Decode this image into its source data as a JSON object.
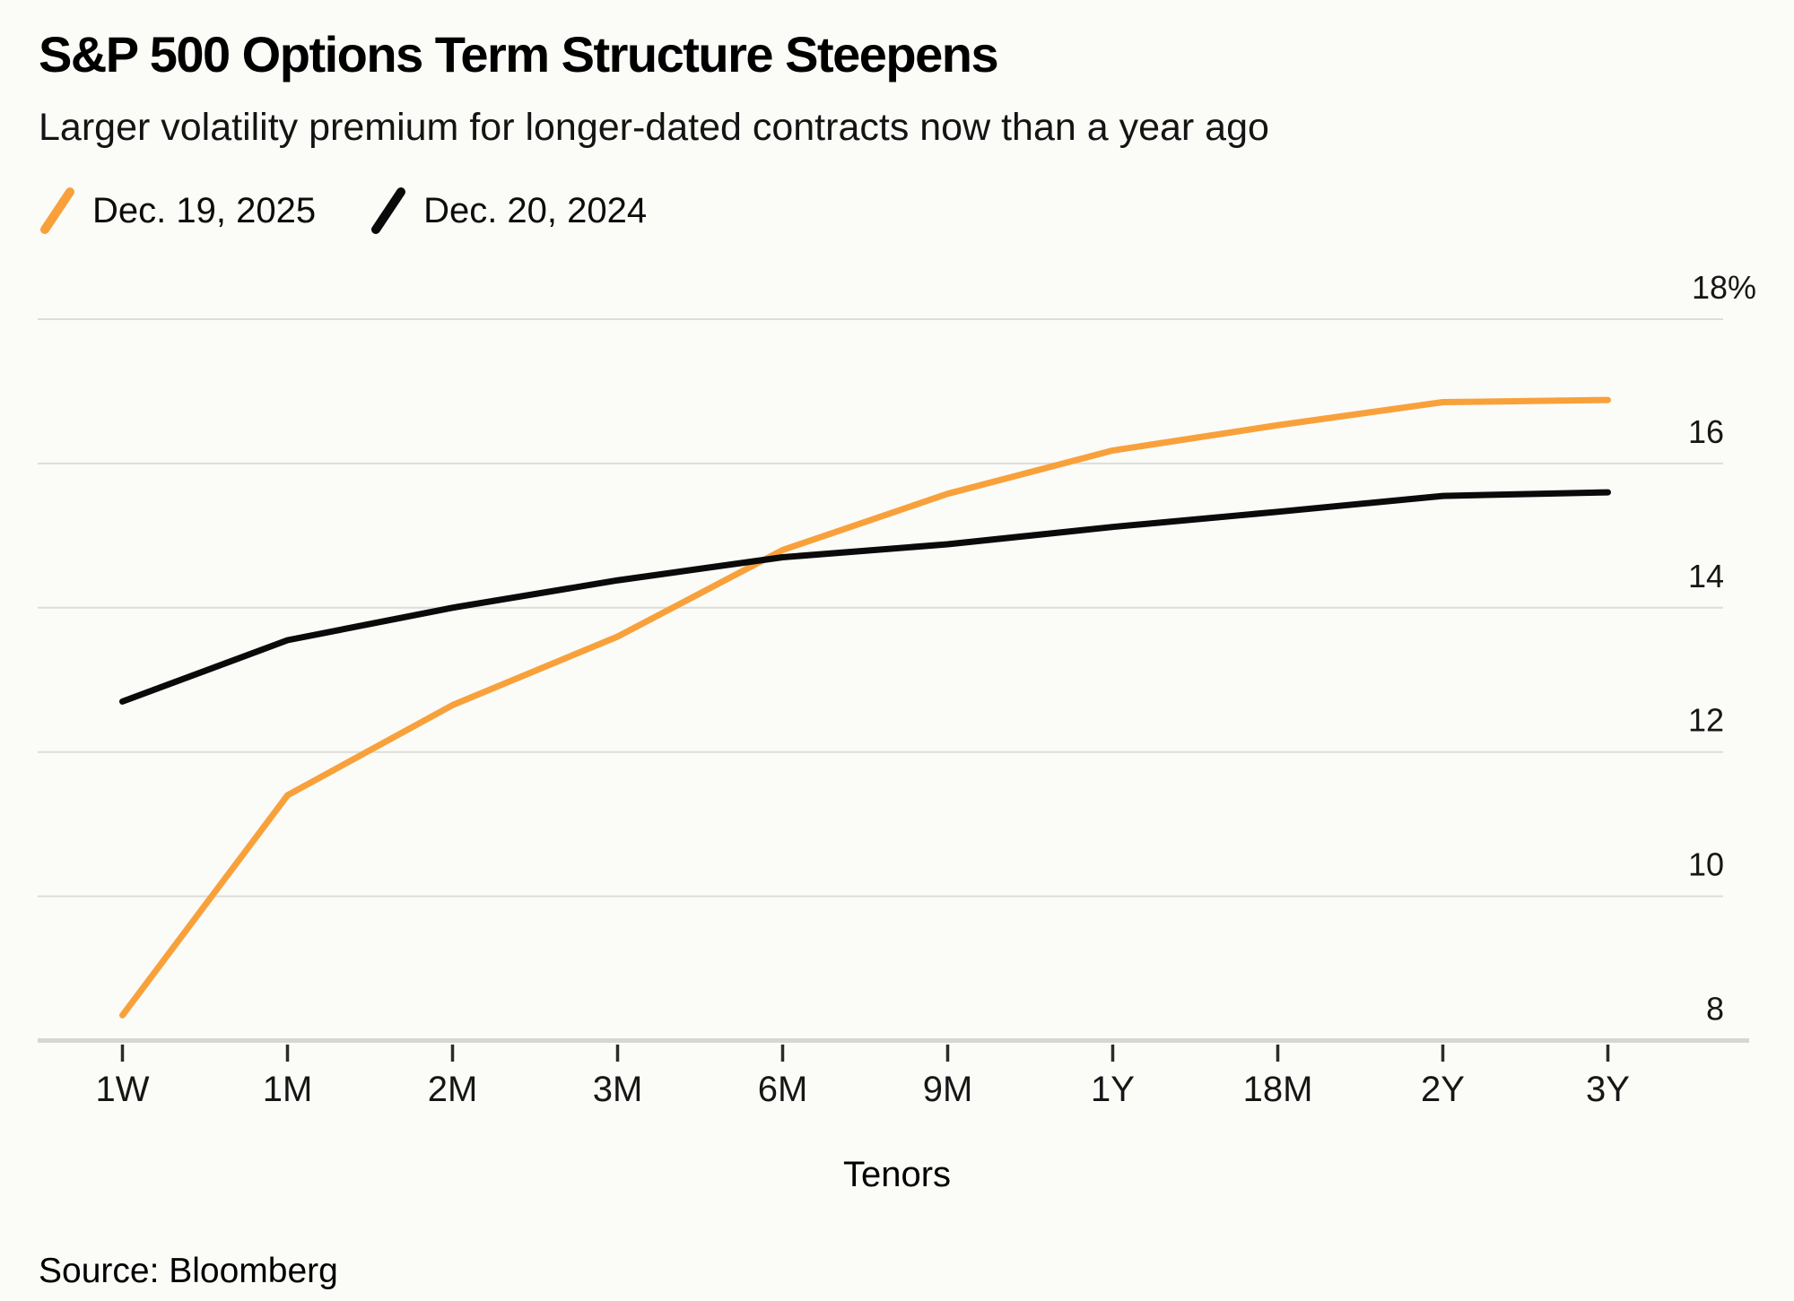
{
  "page": {
    "title": "S&P 500 Options Term Structure Steepens",
    "subtitle": "Larger volatility premium for longer-dated contracts now than a year ago",
    "source": "Source: Bloomberg"
  },
  "colors": {
    "background": "#fbfbf8",
    "grid": "#dddddb",
    "baseline": "#d6d6d2",
    "tick": "#2b2b2b",
    "axis_text": "#161616",
    "series_orange": "#f8a13b",
    "series_black": "#0a0a0a"
  },
  "chart_data": {
    "type": "line",
    "categories": [
      "1W",
      "1M",
      "2M",
      "3M",
      "6M",
      "9M",
      "1Y",
      "18M",
      "2Y",
      "3Y"
    ],
    "series": [
      {
        "name": "Dec. 19, 2025",
        "color": "#f8a13b",
        "values": [
          8.35,
          11.4,
          12.65,
          13.6,
          14.8,
          15.58,
          16.18,
          16.53,
          16.85,
          16.88
        ]
      },
      {
        "name": "Dec. 20, 2024",
        "color": "#0a0a0a",
        "values": [
          12.7,
          13.55,
          14.0,
          14.38,
          14.7,
          14.88,
          15.12,
          15.33,
          15.55,
          15.6
        ]
      }
    ],
    "xlabel": "Tenors",
    "ylabel": "",
    "ylim": [
      8,
      18
    ],
    "yticks": [
      8,
      10,
      12,
      14,
      16,
      18
    ],
    "ytick_labels": [
      "8",
      "10",
      "12",
      "14",
      "16",
      "18%"
    ],
    "grid": "horizontal",
    "legend_position": "top-left",
    "y_unit": "percent"
  }
}
